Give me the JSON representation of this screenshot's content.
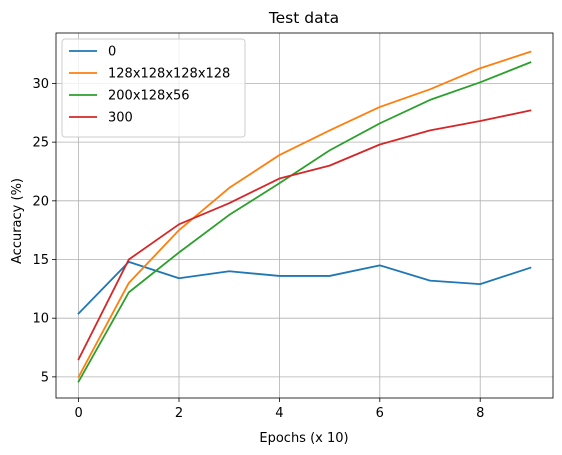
{
  "chart_data": {
    "type": "line",
    "title": "Test data",
    "xlabel": "Epochs (x 10)",
    "ylabel": "Accuracy (%)",
    "xlim": [
      -0.45,
      9.45
    ],
    "ylim": [
      3.2,
      34.3
    ],
    "xticks": [
      0,
      2,
      4,
      6,
      8
    ],
    "yticks": [
      5,
      10,
      15,
      20,
      25,
      30
    ],
    "x": [
      0,
      1,
      2,
      3,
      4,
      5,
      6,
      7,
      8,
      9
    ],
    "grid": true,
    "legend_position": "top-left",
    "series": [
      {
        "name": "0",
        "color": "#1f77b4",
        "values": [
          10.4,
          14.8,
          13.4,
          14.0,
          13.6,
          13.6,
          14.5,
          13.2,
          12.9,
          14.3
        ]
      },
      {
        "name": "128x128x128x128",
        "color": "#ff7f0e",
        "values": [
          5.0,
          13.0,
          17.5,
          21.1,
          23.9,
          26.0,
          28.0,
          29.5,
          31.3,
          32.7
        ]
      },
      {
        "name": "200x128x56",
        "color": "#2ca02c",
        "values": [
          4.6,
          12.2,
          15.6,
          18.8,
          21.5,
          24.3,
          26.6,
          28.6,
          30.1,
          31.8
        ]
      },
      {
        "name": "300",
        "color": "#d62728",
        "values": [
          6.5,
          15.0,
          18.0,
          19.8,
          21.9,
          23.0,
          24.8,
          26.0,
          26.8,
          27.7
        ]
      }
    ]
  }
}
